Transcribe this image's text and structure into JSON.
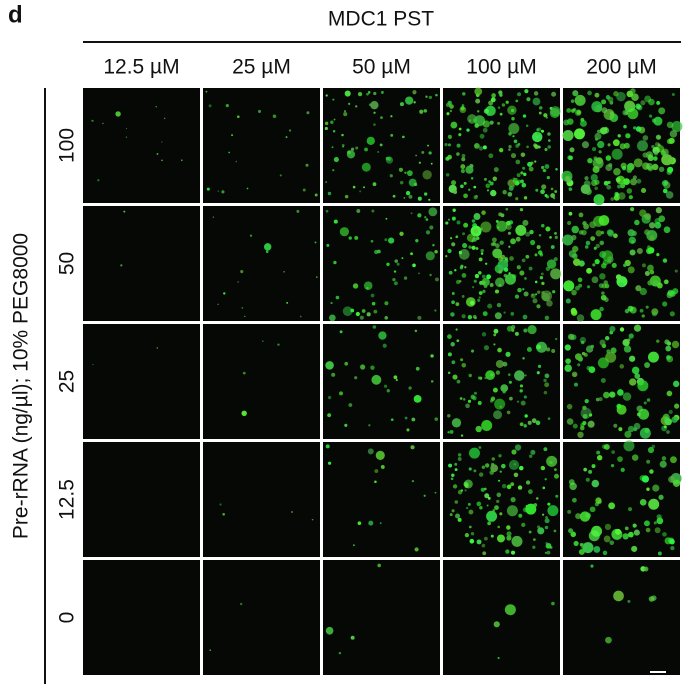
{
  "panel_label": "d",
  "column_header": "MDC1 PST",
  "columns": [
    "12.5 µM",
    "25 µM",
    "50 µM",
    "100 µM",
    "200 µM"
  ],
  "row_axis_label": "Pre-rRNA (ng/µl); 10% PEG8000",
  "rows": [
    "100",
    "50",
    "25",
    "12.5",
    "0"
  ]
}
